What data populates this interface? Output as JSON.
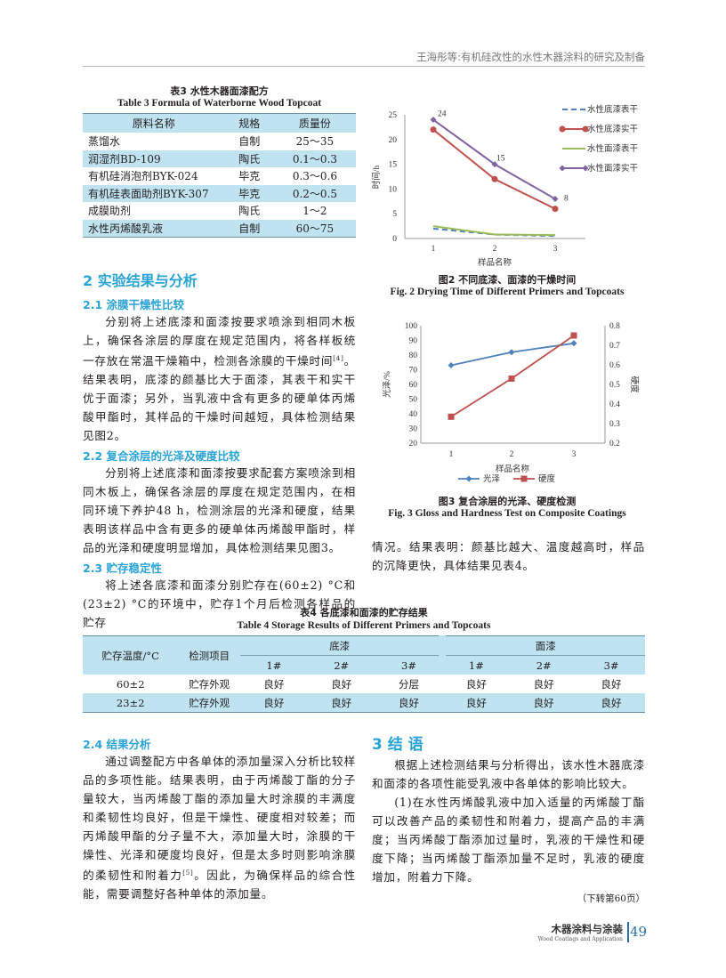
{
  "header": {
    "running_title": "王海彤等:有机硅改性的水性木器涂料的研究及制备"
  },
  "table3": {
    "title_cn": "表3  水性木器面漆配方",
    "title_en": "Table 3   Formula of Waterborne Wood Topcoat",
    "columns": [
      "原料名称",
      "规格",
      "质量份"
    ],
    "rows": [
      [
        "蒸馏水",
        "自制",
        "25～35"
      ],
      [
        "润湿剂BD-109",
        "陶氏",
        "0.1～0.3"
      ],
      [
        "有机硅消泡剂BYK-024",
        "毕克",
        "0.3～0.6"
      ],
      [
        "有机硅表面助剂BYK-307",
        "毕克",
        "0.2～0.5"
      ],
      [
        "成膜助剂",
        "陶氏",
        "1～2"
      ],
      [
        "水性丙烯酸乳液",
        "自制",
        "60～75"
      ]
    ]
  },
  "section2": {
    "title": "2  实验结果与分析",
    "s21": {
      "title": "2.1   涂膜干燥性比较",
      "text": "分别将上述底漆和面漆按要求喷涂到相同木板上，确保各涂层的厚度在规定范围内，将各样板统一存放在常温干燥箱中，检测各涂膜的干燥时间",
      "ref": "[4]",
      "text2": "。结果表明，底漆的颜基比大于面漆，其表干和实干优于面漆；另外，当乳液中含有更多的硬单体丙烯酸甲酯时，其样品的干燥时间越短，具体检测结果见图2。"
    },
    "s22": {
      "title": "2.2   复合涂层的光泽及硬度比较",
      "text": "分别将上述底漆和面漆按要求配套方案喷涂到相同木板上，确保各涂层的厚度在规定范围内，在相同环境下养护48 h，检测涂层的光泽和硬度，结果表明该样品中含有更多的硬单体丙烯酸甲酯时，样品的光泽和硬度明显增加，具体检测结果见图3。"
    },
    "s23": {
      "title": "2.3   贮存稳定性",
      "text": "将上述各底漆和面漆分别贮存在(60±2) °C和(23±2) °C的环境中，贮存1个月后检测各样品的贮存",
      "text_cont": "情况。结果表明：颜基比越大、温度越高时，样品的沉降更快，具体结果见表4。"
    },
    "s24": {
      "title": "2.4   结果分析",
      "text": "通过调整配方中各单体的添加量深入分析比较样品的多项性能。结果表明，由于丙烯酸丁酯的分子量较大，当丙烯酸丁酯的添加量大时涂膜的丰满度和柔韧性均良好，但是干燥性、硬度相对较差；而丙烯酸甲酯的分子量不大，添加量大时，涂膜的干燥性、光泽和硬度均良好，但是太多时则影响涂膜的柔韧性和附着力",
      "ref": "[5]",
      "text2": "。因此，为确保样品的综合性能，需要调整好各种单体的添加量。"
    }
  },
  "section3": {
    "title": "3  结  语",
    "p1": "根据上述检测结果与分析得出，该水性木器底漆和面漆的各项性能受乳液中各单体的影响比较大。",
    "p2": "(1)在水性丙烯酸乳液中加入适量的丙烯酸丁酯可以改善产品的柔韧性和附着力，提高产品的丰满度；当丙烯酸丁酯添加过量时，乳液的干燥性和硬度下降；当丙烯酸丁酯添加量不足时，乳液的硬度增加，附着力下降。",
    "continued": "（下转第60页）"
  },
  "table4": {
    "title_cn": "表4   各底漆和面漆的贮存结果",
    "title_en": "Table 4   Storage Results of Different Primers and Topcoats",
    "col_temp": "贮存温度/°C",
    "col_item": "检测项目",
    "group_primer": "底漆",
    "group_topcoat": "面漆",
    "samples": [
      "1#",
      "2#",
      "3#",
      "1#",
      "2#",
      "3#"
    ],
    "rows": [
      [
        "60±2",
        "贮存外观",
        "良好",
        "良好",
        "分层",
        "良好",
        "良好",
        "良好"
      ],
      [
        "23±2",
        "贮存外观",
        "良好",
        "良好",
        "良好",
        "良好",
        "良好",
        "良好"
      ]
    ]
  },
  "chart_data": [
    {
      "type": "line",
      "caption_cn": "图2   不同底漆、面漆的干燥时间",
      "caption_en": "Fig. 2   Drying Time of Different Primers and Topcoats",
      "xlabel": "样品名称",
      "ylabel": "时间/h",
      "categories": [
        "1",
        "2",
        "3"
      ],
      "ylim": [
        0,
        25
      ],
      "yticks": [
        0,
        5,
        10,
        15,
        20,
        25
      ],
      "legend": "right",
      "series": [
        {
          "name": "水性底漆表干",
          "values": [
            2,
            0.8,
            0.5
          ],
          "color": "#4f81bd",
          "style": "dashed"
        },
        {
          "name": "水性底漆实干",
          "values": [
            22,
            12,
            6
          ],
          "color": "#c0504d",
          "marker": "circle"
        },
        {
          "name": "水性面漆表干",
          "values": [
            2.5,
            0.8,
            0.7
          ],
          "color": "#9bbb59"
        },
        {
          "name": "水性面漆实干",
          "values": [
            24,
            15,
            8
          ],
          "color": "#8064a2",
          "marker": "diamond",
          "labels": [
            "24",
            "15",
            "8"
          ]
        }
      ]
    },
    {
      "type": "line",
      "caption_cn": "图3   复合涂层的光泽、硬度检测",
      "caption_en": "Fig. 3   Gloss and Hardness Test on Composite Coatings",
      "xlabel": "样品名称",
      "ylabel": "光泽/%",
      "y2label": "硬度",
      "categories": [
        "1",
        "2",
        "3"
      ],
      "ylim": [
        20,
        100
      ],
      "yticks": [
        20,
        30,
        40,
        50,
        60,
        70,
        80,
        90,
        100
      ],
      "y2lim": [
        0.2,
        0.8
      ],
      "y2ticks": [
        "0.2",
        "0.3",
        "0.4",
        "0.5",
        "0.6",
        "0.7",
        "0.8"
      ],
      "legend": "bottom",
      "series": [
        {
          "name": "光泽",
          "values": [
            73,
            82,
            88
          ],
          "axis": "left",
          "color": "#4f81bd",
          "marker": "diamond"
        },
        {
          "name": "硬度",
          "values": [
            0.335,
            0.53,
            0.75
          ],
          "axis": "right",
          "color": "#c0504d",
          "marker": "square"
        }
      ]
    }
  ],
  "footer": {
    "journal_cn": "木器涂料与涂装",
    "journal_en": "Wood Coatings and Application",
    "page": "49"
  }
}
